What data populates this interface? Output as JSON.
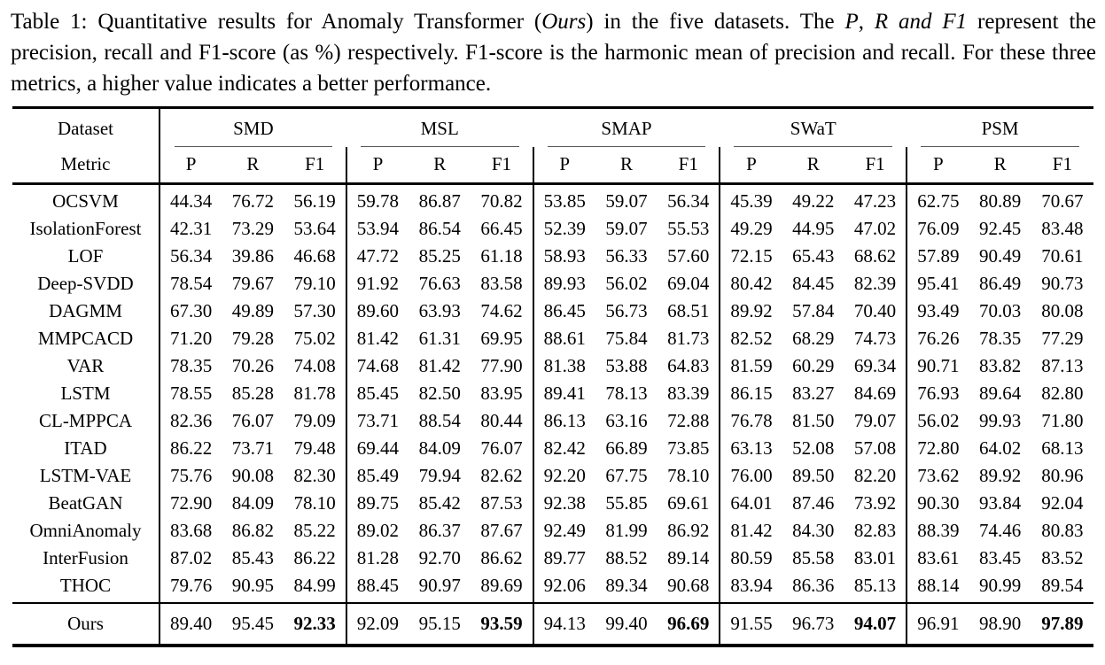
{
  "caption": {
    "segments": [
      {
        "text": "Table 1: Quantitative results for Anomaly Transformer (",
        "italic": false
      },
      {
        "text": "Ours",
        "italic": true
      },
      {
        "text": ") in the five datasets. The ",
        "italic": false
      },
      {
        "text": "P",
        "italic": true
      },
      {
        "text": ", ",
        "italic": false
      },
      {
        "text": "R",
        "italic": true
      },
      {
        "text": " and ",
        "italic": true
      },
      {
        "text": "F1",
        "italic": true
      },
      {
        "text": " represent the precision, recall and F1-score (as %) respectively. F1-score is the harmonic mean of precision and recall. For these three metrics, a higher value indicates a better performance.",
        "italic": false
      }
    ]
  },
  "table": {
    "header": {
      "dataset_label": "Dataset",
      "metric_label": "Metric",
      "groups": [
        "SMD",
        "MSL",
        "SMAP",
        "SWaT",
        "PSM"
      ],
      "metrics": [
        "P",
        "R",
        "F1"
      ]
    },
    "rows": [
      {
        "method": "OCSVM",
        "values": [
          "44.34",
          "76.72",
          "56.19",
          "59.78",
          "86.87",
          "70.82",
          "53.85",
          "59.07",
          "56.34",
          "45.39",
          "49.22",
          "47.23",
          "62.75",
          "80.89",
          "70.67"
        ]
      },
      {
        "method": "IsolationForest",
        "values": [
          "42.31",
          "73.29",
          "53.64",
          "53.94",
          "86.54",
          "66.45",
          "52.39",
          "59.07",
          "55.53",
          "49.29",
          "44.95",
          "47.02",
          "76.09",
          "92.45",
          "83.48"
        ]
      },
      {
        "method": "LOF",
        "values": [
          "56.34",
          "39.86",
          "46.68",
          "47.72",
          "85.25",
          "61.18",
          "58.93",
          "56.33",
          "57.60",
          "72.15",
          "65.43",
          "68.62",
          "57.89",
          "90.49",
          "70.61"
        ]
      },
      {
        "method": "Deep-SVDD",
        "values": [
          "78.54",
          "79.67",
          "79.10",
          "91.92",
          "76.63",
          "83.58",
          "89.93",
          "56.02",
          "69.04",
          "80.42",
          "84.45",
          "82.39",
          "95.41",
          "86.49",
          "90.73"
        ]
      },
      {
        "method": "DAGMM",
        "values": [
          "67.30",
          "49.89",
          "57.30",
          "89.60",
          "63.93",
          "74.62",
          "86.45",
          "56.73",
          "68.51",
          "89.92",
          "57.84",
          "70.40",
          "93.49",
          "70.03",
          "80.08"
        ]
      },
      {
        "method": "MMPCACD",
        "values": [
          "71.20",
          "79.28",
          "75.02",
          "81.42",
          "61.31",
          "69.95",
          "88.61",
          "75.84",
          "81.73",
          "82.52",
          "68.29",
          "74.73",
          "76.26",
          "78.35",
          "77.29"
        ]
      },
      {
        "method": "VAR",
        "values": [
          "78.35",
          "70.26",
          "74.08",
          "74.68",
          "81.42",
          "77.90",
          "81.38",
          "53.88",
          "64.83",
          "81.59",
          "60.29",
          "69.34",
          "90.71",
          "83.82",
          "87.13"
        ]
      },
      {
        "method": "LSTM",
        "values": [
          "78.55",
          "85.28",
          "81.78",
          "85.45",
          "82.50",
          "83.95",
          "89.41",
          "78.13",
          "83.39",
          "86.15",
          "83.27",
          "84.69",
          "76.93",
          "89.64",
          "82.80"
        ]
      },
      {
        "method": "CL-MPPCA",
        "values": [
          "82.36",
          "76.07",
          "79.09",
          "73.71",
          "88.54",
          "80.44",
          "86.13",
          "63.16",
          "72.88",
          "76.78",
          "81.50",
          "79.07",
          "56.02",
          "99.93",
          "71.80"
        ]
      },
      {
        "method": "ITAD",
        "values": [
          "86.22",
          "73.71",
          "79.48",
          "69.44",
          "84.09",
          "76.07",
          "82.42",
          "66.89",
          "73.85",
          "63.13",
          "52.08",
          "57.08",
          "72.80",
          "64.02",
          "68.13"
        ]
      },
      {
        "method": "LSTM-VAE",
        "values": [
          "75.76",
          "90.08",
          "82.30",
          "85.49",
          "79.94",
          "82.62",
          "92.20",
          "67.75",
          "78.10",
          "76.00",
          "89.50",
          "82.20",
          "73.62",
          "89.92",
          "80.96"
        ]
      },
      {
        "method": "BeatGAN",
        "values": [
          "72.90",
          "84.09",
          "78.10",
          "89.75",
          "85.42",
          "87.53",
          "92.38",
          "55.85",
          "69.61",
          "64.01",
          "87.46",
          "73.92",
          "90.30",
          "93.84",
          "92.04"
        ]
      },
      {
        "method": "OmniAnomaly",
        "values": [
          "83.68",
          "86.82",
          "85.22",
          "89.02",
          "86.37",
          "87.67",
          "92.49",
          "81.99",
          "86.92",
          "81.42",
          "84.30",
          "82.83",
          "88.39",
          "74.46",
          "80.83"
        ]
      },
      {
        "method": "InterFusion",
        "values": [
          "87.02",
          "85.43",
          "86.22",
          "81.28",
          "92.70",
          "86.62",
          "89.77",
          "88.52",
          "89.14",
          "80.59",
          "85.58",
          "83.01",
          "83.61",
          "83.45",
          "83.52"
        ]
      },
      {
        "method": "THOC",
        "values": [
          "79.76",
          "90.95",
          "84.99",
          "88.45",
          "90.97",
          "89.69",
          "92.06",
          "89.34",
          "90.68",
          "83.94",
          "86.36",
          "85.13",
          "88.14",
          "90.99",
          "89.54"
        ]
      }
    ],
    "ours": {
      "method": "Ours",
      "values": [
        "89.40",
        "95.45",
        "92.33",
        "92.09",
        "95.15",
        "93.59",
        "94.13",
        "99.40",
        "96.69",
        "91.55",
        "96.73",
        "94.07",
        "96.91",
        "98.90",
        "97.89"
      ],
      "bold_indices": [
        2,
        5,
        8,
        11,
        14
      ]
    }
  },
  "colors": {
    "text": "#000000",
    "background": "#ffffff",
    "rule": "#000000",
    "cmidrule": "#5a5a5a"
  }
}
